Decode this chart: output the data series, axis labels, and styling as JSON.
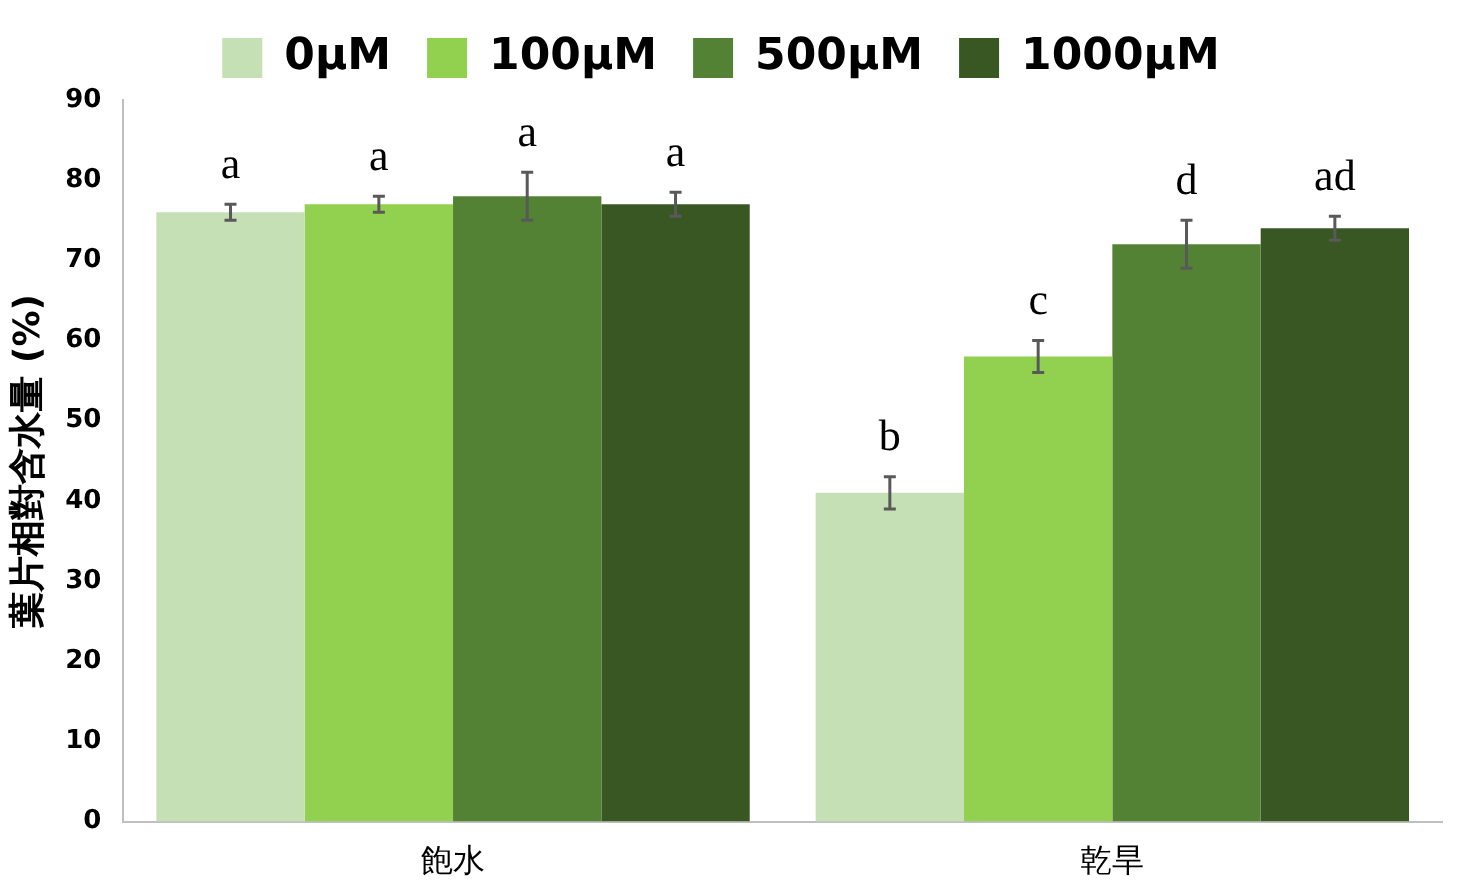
{
  "chart_data": {
    "type": "bar",
    "ylabel": "葉片相對含水量 (%)",
    "categories": [
      "飽水",
      "乾旱"
    ],
    "series": [
      {
        "name": "0μM",
        "color": "#c5e0b4",
        "values": [
          76,
          41
        ],
        "errors": [
          1,
          2
        ],
        "value_labels": [
          "a",
          "b"
        ]
      },
      {
        "name": "100μM",
        "color": "#92d050",
        "values": [
          77,
          58
        ],
        "errors": [
          1,
          2
        ],
        "value_labels": [
          "a",
          "c"
        ]
      },
      {
        "name": "500μM",
        "color": "#548235",
        "values": [
          78,
          72
        ],
        "errors": [
          3,
          3
        ],
        "value_labels": [
          "a",
          "d"
        ]
      },
      {
        "name": "1000μM",
        "color": "#385723",
        "values": [
          77,
          74
        ],
        "errors": [
          1.5,
          1.5
        ],
        "value_labels": [
          "a",
          "ad"
        ]
      }
    ],
    "ylim": [
      0,
      90
    ],
    "yticks": [
      0,
      10,
      20,
      30,
      40,
      50,
      60,
      70,
      80,
      90
    ],
    "grid": false,
    "legend": "top"
  }
}
